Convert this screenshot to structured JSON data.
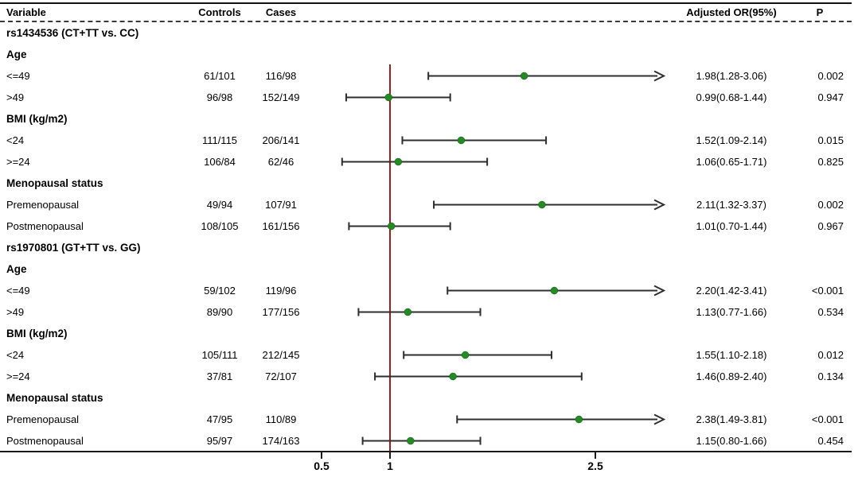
{
  "header": {
    "variable": "Variable",
    "controls": "Controls",
    "cases": "Cases",
    "or": "Adjusted OR(95%)",
    "p": "P"
  },
  "colors": {
    "ref_line": "#a31d1f",
    "marker": "#228B22",
    "error_bar": "#2e2e2e",
    "text": "#000000",
    "border": "#1a1a1a"
  },
  "chart_data": {
    "type": "forest",
    "x_axis": {
      "scale": "linear",
      "ticks": [
        "0.5",
        "1",
        "2.5"
      ],
      "ref_line_value": 1,
      "display_range": [
        0.3,
        3.0
      ],
      "arrow_means": "upper CI limit exceeds axis range"
    },
    "rows": [
      {
        "kind": "section",
        "label": "rs1434536 (CT+TT vs. CC)"
      },
      {
        "kind": "group",
        "label": "Age"
      },
      {
        "kind": "data",
        "label": "<=49",
        "controls": "61/101",
        "cases": "116/98",
        "or": 1.98,
        "lo": 1.28,
        "hi": 3.06,
        "or_text": "1.98(1.28-3.06)",
        "p": "0.002",
        "arrow": true
      },
      {
        "kind": "data",
        "label": ">49",
        "controls": "96/98",
        "cases": "152/149",
        "or": 0.99,
        "lo": 0.68,
        "hi": 1.44,
        "or_text": "0.99(0.68-1.44)",
        "p": "0.947",
        "arrow": false
      },
      {
        "kind": "group",
        "label": "BMI (kg/m2)"
      },
      {
        "kind": "data",
        "label": "<24",
        "controls": "111/115",
        "cases": "206/141",
        "or": 1.52,
        "lo": 1.09,
        "hi": 2.14,
        "or_text": "1.52(1.09-2.14)",
        "p": "0.015",
        "arrow": false
      },
      {
        "kind": "data",
        "label": ">=24",
        "controls": "106/84",
        "cases": "62/46",
        "or": 1.06,
        "lo": 0.65,
        "hi": 1.71,
        "or_text": "1.06(0.65-1.71)",
        "p": "0.825",
        "arrow": false
      },
      {
        "kind": "group",
        "label": "Menopausal status"
      },
      {
        "kind": "data",
        "label": "Premenopausal",
        "controls": "49/94",
        "cases": "107/91",
        "or": 2.11,
        "lo": 1.32,
        "hi": 3.37,
        "or_text": "2.11(1.32-3.37)",
        "p": "0.002",
        "arrow": true
      },
      {
        "kind": "data",
        "label": "Postmenopausal",
        "controls": "108/105",
        "cases": "161/156",
        "or": 1.01,
        "lo": 0.7,
        "hi": 1.44,
        "or_text": "1.01(0.70-1.44)",
        "p": "0.967",
        "arrow": false
      },
      {
        "kind": "section",
        "label": "rs1970801 (GT+TT vs. GG)"
      },
      {
        "kind": "group",
        "label": "Age"
      },
      {
        "kind": "data",
        "label": "<=49",
        "controls": "59/102",
        "cases": "119/96",
        "or": 2.2,
        "lo": 1.42,
        "hi": 3.41,
        "or_text": "2.20(1.42-3.41)",
        "p": "<0.001",
        "arrow": true
      },
      {
        "kind": "data",
        "label": ">49",
        "controls": "89/90",
        "cases": "177/156",
        "or": 1.13,
        "lo": 0.77,
        "hi": 1.66,
        "or_text": "1.13(0.77-1.66)",
        "p": "0.534",
        "arrow": false
      },
      {
        "kind": "group",
        "label": "BMI (kg/m2)"
      },
      {
        "kind": "data",
        "label": "<24",
        "controls": "105/111",
        "cases": "212/145",
        "or": 1.55,
        "lo": 1.1,
        "hi": 2.18,
        "or_text": "1.55(1.10-2.18)",
        "p": "0.012",
        "arrow": false
      },
      {
        "kind": "data",
        "label": ">=24",
        "controls": "37/81",
        "cases": "72/107",
        "or": 1.46,
        "lo": 0.89,
        "hi": 2.4,
        "or_text": "1.46(0.89-2.40)",
        "p": "0.134",
        "arrow": false
      },
      {
        "kind": "group",
        "label": "Menopausal status"
      },
      {
        "kind": "data",
        "label": "Premenopausal",
        "controls": "47/95",
        "cases": "110/89",
        "or": 2.38,
        "lo": 1.49,
        "hi": 3.81,
        "or_text": "2.38(1.49-3.81)",
        "p": "<0.001",
        "arrow": true
      },
      {
        "kind": "data",
        "label": "Postmenopausal",
        "controls": "95/97",
        "cases": "174/163",
        "or": 1.15,
        "lo": 0.8,
        "hi": 1.66,
        "or_text": "1.15(0.80-1.66)",
        "p": "0.454",
        "arrow": false
      }
    ]
  }
}
